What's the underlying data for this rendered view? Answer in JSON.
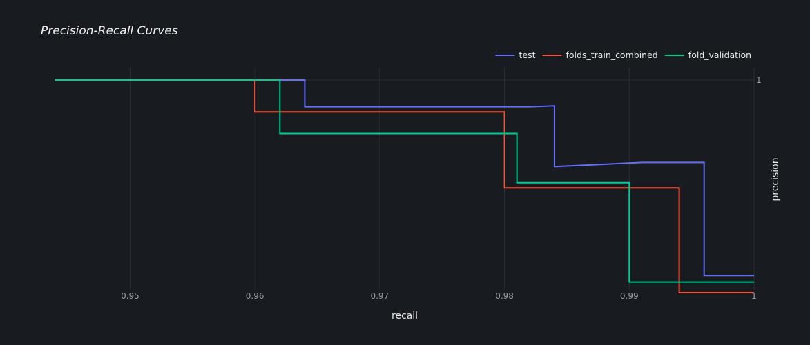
{
  "chart_data": {
    "type": "line",
    "title": "Precision-Recall Curves",
    "xlabel": "recall",
    "ylabel": "precision",
    "xlim": [
      0.944,
      1.0
    ],
    "ylim": [
      0.9015,
      1.0
    ],
    "x_ticks": [
      0.95,
      0.96,
      0.97,
      0.98,
      0.99,
      1.0
    ],
    "x_tick_labels": [
      "0.95",
      "0.96",
      "0.97",
      "0.98",
      "0.99",
      "1"
    ],
    "y_ticks": [
      1.0
    ],
    "y_tick_labels": [
      "1"
    ],
    "grid": true,
    "legend_position": "top-right",
    "y_axis_side": "right",
    "series": [
      {
        "name": "test",
        "color": "#636efa",
        "x": [
          0.944,
          0.964,
          0.964,
          0.982,
          0.984,
          0.984,
          0.991,
          0.996,
          0.996,
          1.0
        ],
        "y": [
          1.0,
          1.0,
          0.9875,
          0.9875,
          0.9879,
          0.9594,
          0.9613,
          0.9613,
          0.9082,
          0.9082
        ]
      },
      {
        "name": "folds_train_combined",
        "color": "#ef553b",
        "x": [
          0.944,
          0.96,
          0.96,
          0.98,
          0.98,
          0.994,
          0.994,
          1.0
        ],
        "y": [
          1.0,
          1.0,
          0.985,
          0.985,
          0.9494,
          0.9494,
          0.9002,
          0.9002
        ]
      },
      {
        "name": "fold_validation",
        "color": "#00cc96",
        "x": [
          0.944,
          0.962,
          0.962,
          0.981,
          0.981,
          0.99,
          0.99,
          1.0
        ],
        "y": [
          1.0,
          1.0,
          0.9749,
          0.9749,
          0.9518,
          0.9518,
          0.9052,
          0.9052
        ]
      }
    ]
  }
}
